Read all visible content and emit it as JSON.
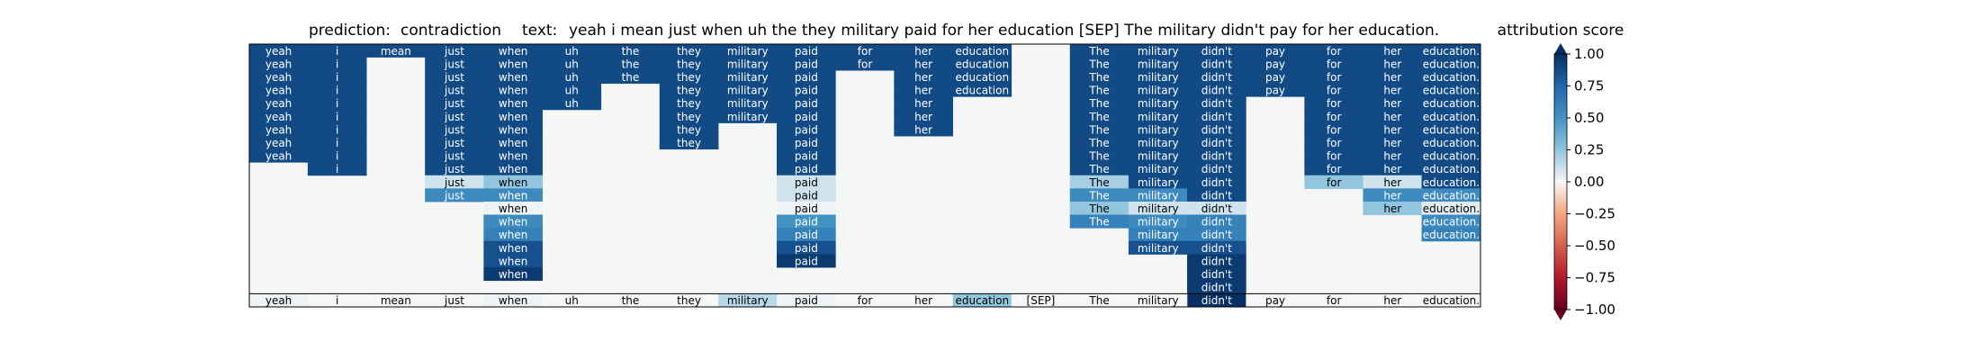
{
  "title": {
    "prediction_label": "prediction:",
    "prediction": "contradiction",
    "text_label": "text:",
    "text": "yeah i mean just when uh the they military paid for her education [SEP] The military didn't pay for her education."
  },
  "colorbar": {
    "title": "attribution score",
    "ticks": [
      "1.00",
      "0.75",
      "0.50",
      "0.25",
      "0.00",
      "−0.25",
      "−0.50",
      "−0.75",
      "−1.00"
    ]
  },
  "colors": {
    "positive_strong": "#0b3d7e",
    "neutral": "#f5f6f6",
    "negative_strong": "#7e0a22",
    "frame": "#000000"
  },
  "chart_data": {
    "type": "heatmap",
    "tokens": [
      "yeah",
      "i",
      "mean",
      "just",
      "when",
      "uh",
      "the",
      "they",
      "military",
      "paid",
      "for",
      "her",
      "education",
      "[SEP]",
      "The",
      "military",
      "didn't",
      "pay",
      "for",
      "her",
      "education."
    ],
    "note_rows": "Rows are erasure steps from top to bottom; the bottom row shows the final per-token attribution score. Cell values are attribution scores in [-1, 1]; 0 means empty/neutral.",
    "rows": [
      [
        0.88,
        0.88,
        0.88,
        0.88,
        0.88,
        0.88,
        0.88,
        0.88,
        0.88,
        0.88,
        0.88,
        0.88,
        0.88,
        0,
        0.88,
        0.88,
        0.88,
        0.88,
        0.88,
        0.88,
        0.88
      ],
      [
        0.88,
        0.88,
        0,
        0.88,
        0.88,
        0.88,
        0.88,
        0.88,
        0.88,
        0.88,
        0.88,
        0.88,
        0.88,
        0,
        0.88,
        0.88,
        0.88,
        0.88,
        0.88,
        0.88,
        0.88
      ],
      [
        0.88,
        0.88,
        0,
        0.88,
        0.88,
        0.88,
        0.88,
        0.88,
        0.88,
        0.88,
        0,
        0.88,
        0.88,
        0,
        0.88,
        0.88,
        0.88,
        0.88,
        0.88,
        0.88,
        0.88
      ],
      [
        0.88,
        0.88,
        0,
        0.88,
        0.88,
        0.88,
        0,
        0.88,
        0.88,
        0.88,
        0,
        0.88,
        0.88,
        0,
        0.88,
        0.88,
        0.88,
        0.88,
        0.88,
        0.88,
        0.88
      ],
      [
        0.88,
        0.88,
        0,
        0.88,
        0.88,
        0.88,
        0,
        0.88,
        0.88,
        0.88,
        0,
        0.88,
        0,
        0,
        0.88,
        0.88,
        0.88,
        0,
        0.88,
        0.88,
        0.88
      ],
      [
        0.88,
        0.88,
        0,
        0.88,
        0.88,
        0,
        0,
        0.88,
        0.88,
        0.88,
        0,
        0.88,
        0,
        0,
        0.88,
        0.88,
        0.88,
        0,
        0.88,
        0.88,
        0.88
      ],
      [
        0.88,
        0.88,
        0,
        0.88,
        0.88,
        0,
        0,
        0.88,
        0,
        0.88,
        0,
        0.88,
        0,
        0,
        0.88,
        0.88,
        0.88,
        0,
        0.88,
        0.88,
        0.88
      ],
      [
        0.88,
        0.88,
        0,
        0.88,
        0.88,
        0,
        0,
        0.88,
        0,
        0.88,
        0,
        0,
        0,
        0,
        0.88,
        0.88,
        0.88,
        0,
        0.88,
        0.88,
        0.88
      ],
      [
        0.88,
        0.88,
        0,
        0.88,
        0.88,
        0,
        0,
        0,
        0,
        0.88,
        0,
        0,
        0,
        0,
        0.88,
        0.88,
        0.88,
        0,
        0.88,
        0.88,
        0.88
      ],
      [
        0,
        0.88,
        0,
        0.88,
        0.88,
        0,
        0,
        0,
        0,
        0.88,
        0,
        0,
        0,
        0,
        0.88,
        0.88,
        0.88,
        0,
        0.88,
        0.88,
        0.88
      ],
      [
        0,
        0,
        0,
        0.1,
        0.25,
        0,
        0,
        0,
        0,
        0.1,
        0,
        0,
        0,
        0,
        0.2,
        0.88,
        0.88,
        0,
        0.25,
        0.1,
        0.88
      ],
      [
        0,
        0,
        0,
        0.55,
        0.55,
        0,
        0,
        0,
        0,
        0.1,
        0,
        0,
        0,
        0,
        0.55,
        0.55,
        0.88,
        0,
        0,
        0.55,
        0.55
      ],
      [
        0,
        0,
        0,
        0,
        0.02,
        0,
        0,
        0,
        0,
        0.02,
        0,
        0,
        0,
        0,
        0.25,
        0.1,
        0.1,
        0,
        0,
        0.25,
        0.05
      ],
      [
        0,
        0,
        0,
        0,
        0.55,
        0,
        0,
        0,
        0,
        0.5,
        0,
        0,
        0,
        0,
        0.6,
        0.55,
        0.6,
        0,
        0,
        0,
        0.55
      ],
      [
        0,
        0,
        0,
        0,
        0.6,
        0,
        0,
        0,
        0,
        0.6,
        0,
        0,
        0,
        0,
        0,
        0.6,
        0.6,
        0,
        0,
        0,
        0.6
      ],
      [
        0,
        0,
        0,
        0,
        0.85,
        0,
        0,
        0,
        0,
        0.85,
        0,
        0,
        0,
        0,
        0,
        0.85,
        0.85,
        0,
        0,
        0,
        0
      ],
      [
        0,
        0,
        0,
        0,
        0.85,
        0,
        0,
        0,
        0,
        0.95,
        0,
        0,
        0,
        0,
        0,
        0,
        0.95,
        0,
        0,
        0,
        0
      ],
      [
        0,
        0,
        0,
        0,
        0.95,
        0,
        0,
        0,
        0,
        0,
        0,
        0,
        0,
        0,
        0,
        0,
        0.95,
        0,
        0,
        0,
        0
      ],
      [
        0,
        0,
        0,
        0,
        0,
        0,
        0,
        0,
        0,
        0,
        0,
        0,
        0,
        0,
        0,
        0,
        0.95,
        0,
        0,
        0,
        0
      ]
    ],
    "bottom_row": [
      0.02,
      0,
      0,
      0,
      0.02,
      0,
      0,
      0,
      0.15,
      0.02,
      0,
      0,
      0.25,
      0,
      0,
      0,
      1.0,
      0,
      0,
      0,
      0
    ],
    "colorbar_range": [
      -1,
      1
    ],
    "colormap": "RdBu"
  }
}
